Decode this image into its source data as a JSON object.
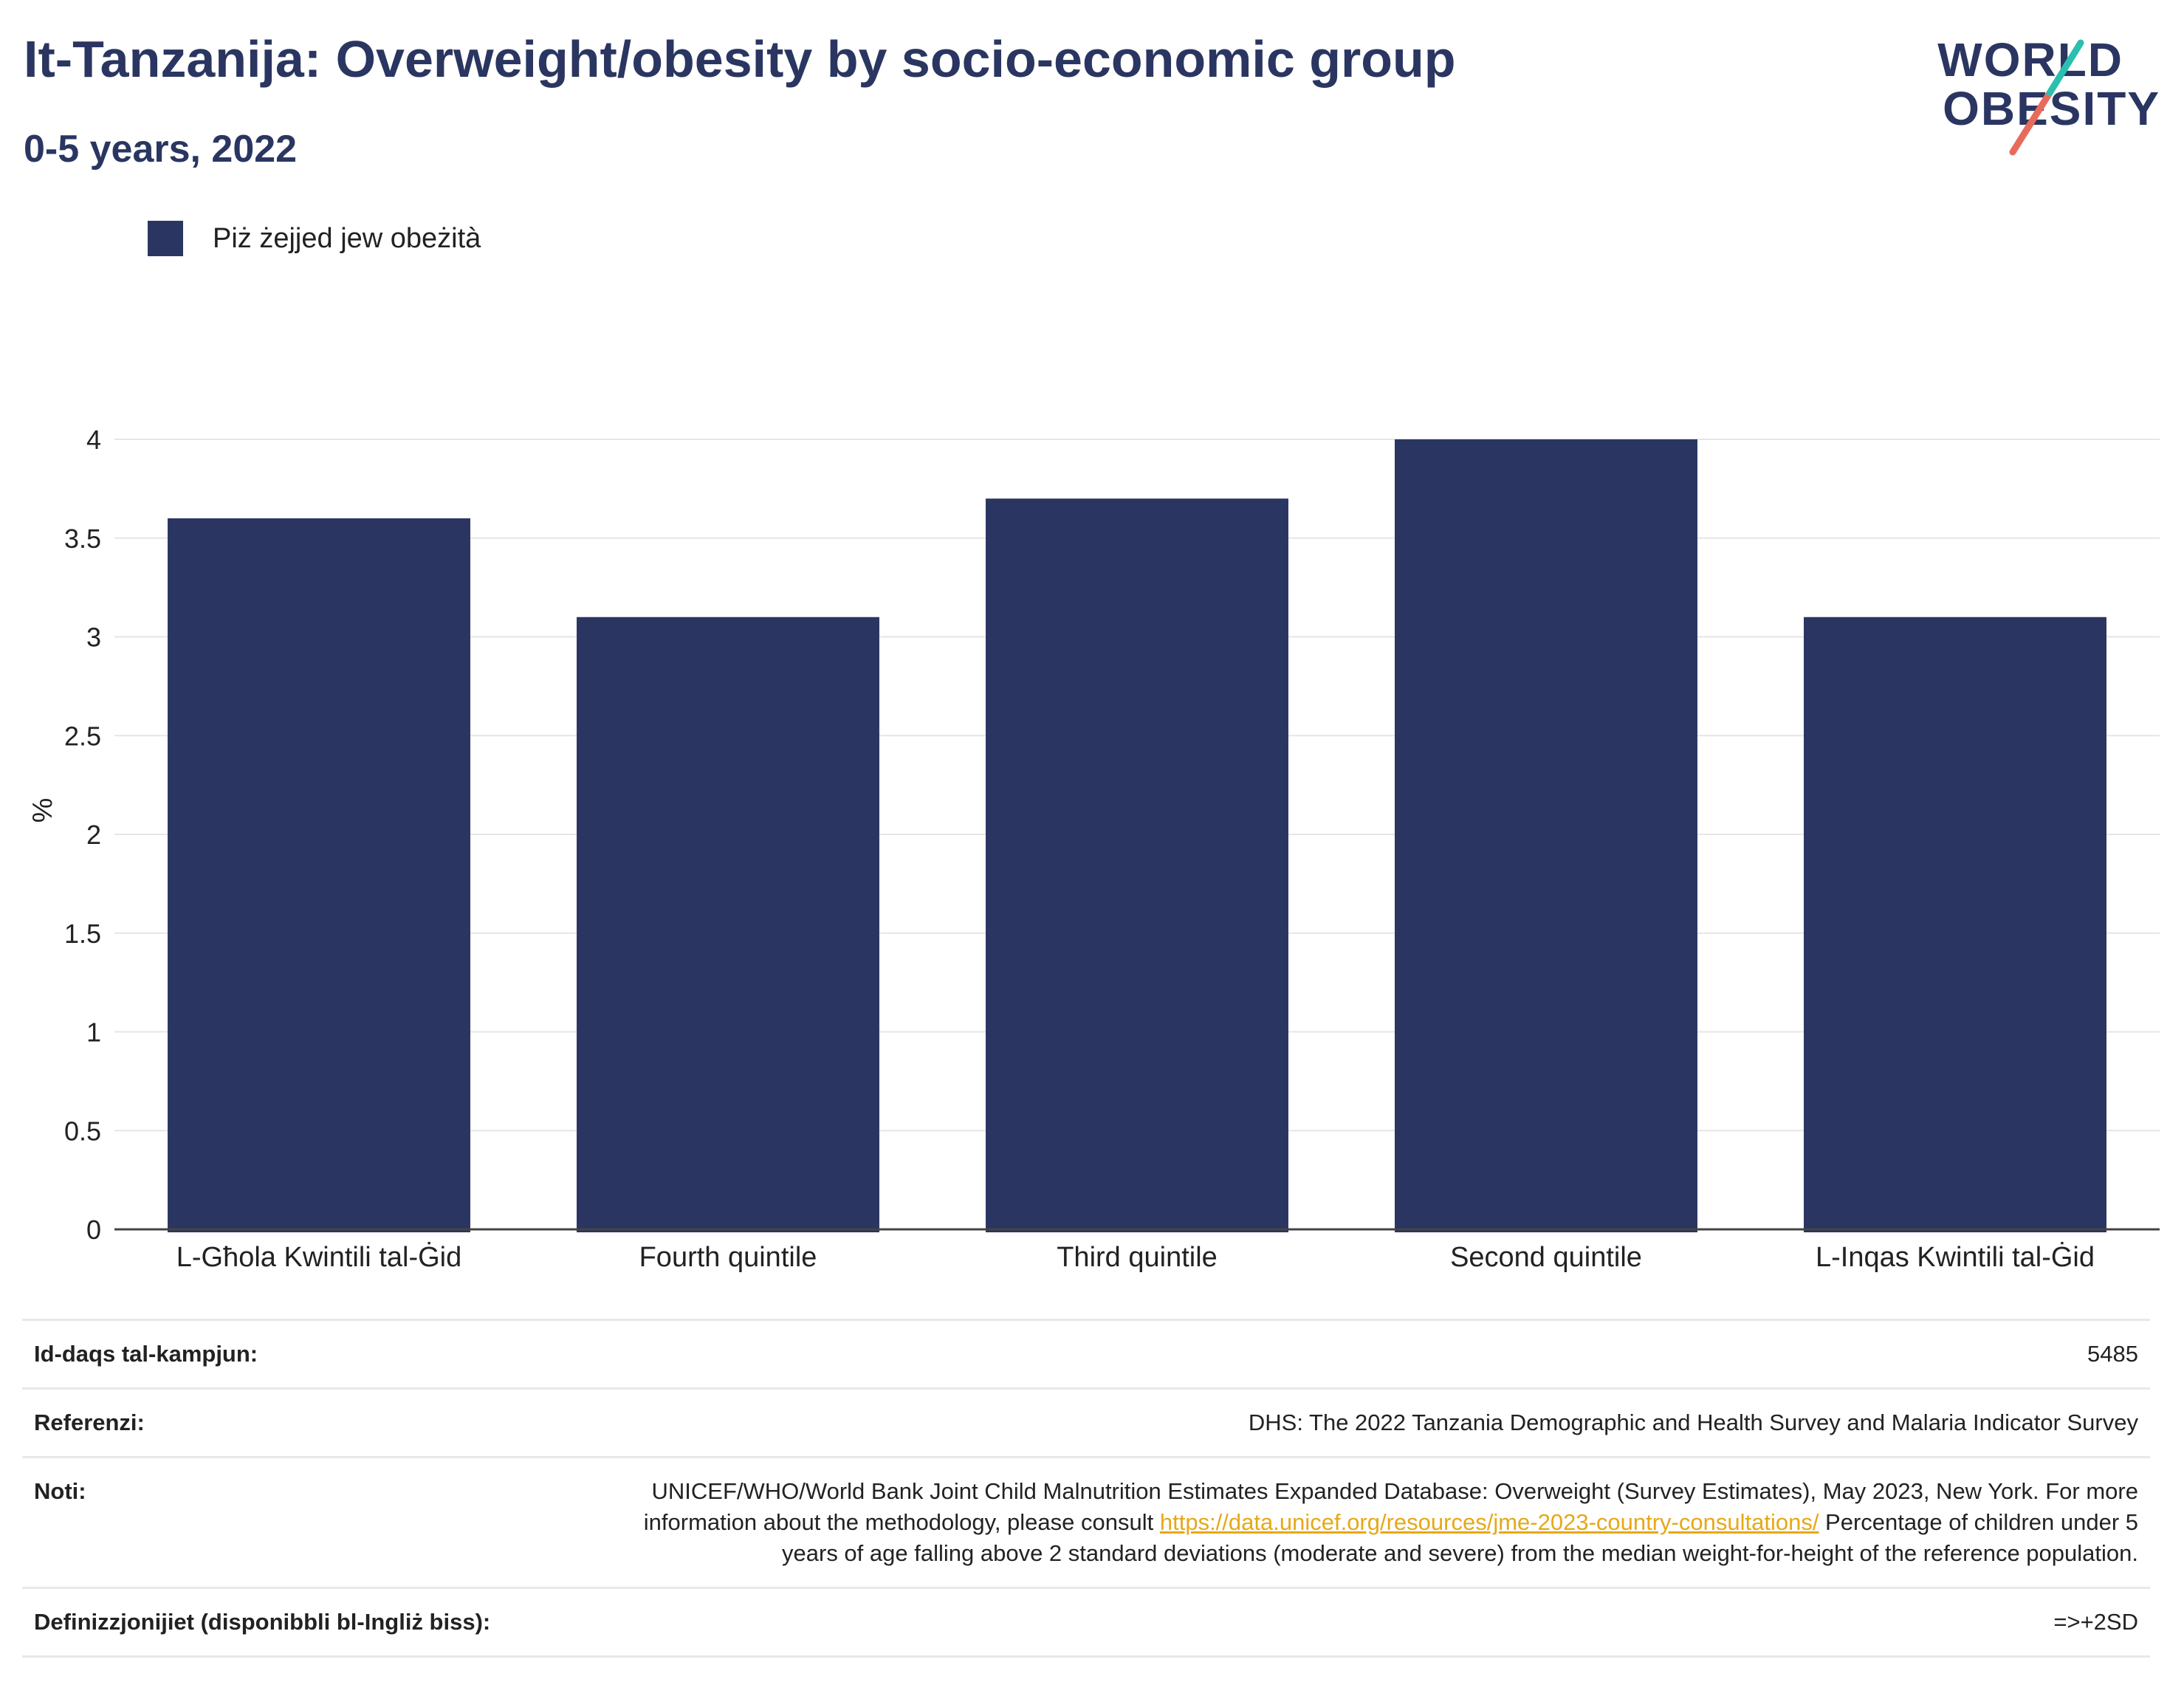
{
  "header": {
    "title": "It-Tanzanija: Overweight/obesity by socio-economic group",
    "subtitle": "0-5 years, 2022"
  },
  "logo": {
    "line1": "WORLD",
    "line2": "OBESITY"
  },
  "colors": {
    "bar": "#2a3661",
    "title": "#2a3661",
    "link": "#e6a817",
    "logo_teal": "#2bbfb0",
    "logo_coral": "#e86a5b"
  },
  "legend": {
    "label": "Piż żejjed jew obeżità"
  },
  "chart_data": {
    "type": "bar",
    "categories": [
      "L-Għola Kwintili tal-Ġid",
      "Fourth quintile",
      "Third quintile",
      "Second quintile",
      "L-Inqas Kwintili tal-Ġid"
    ],
    "series": [
      {
        "name": "Piż żejjed jew obeżità",
        "values": [
          3.6,
          3.1,
          3.7,
          4.0,
          3.1
        ]
      }
    ],
    "ylabel": "%",
    "ylim": [
      0,
      4
    ],
    "yticks": [
      0,
      0.5,
      1,
      1.5,
      2,
      2.5,
      3,
      3.5,
      4
    ],
    "ytick_labels": [
      "0",
      "0.5",
      "1",
      "1.5",
      "2",
      "2.5",
      "3",
      "3.5",
      "4"
    ],
    "grid": true,
    "legend_position": "top-left"
  },
  "info": {
    "sample_label": "Id-daqs tal-kampjun:",
    "sample_value": "5485",
    "refs_label": "Referenzi:",
    "refs_value": "DHS: The 2022 Tanzania Demographic and Health Survey and Malaria Indicator Survey",
    "notes_label": "Noti:",
    "notes_text1": "UNICEF/WHO/World Bank Joint Child Malnutrition Estimates Expanded Database: Overweight (Survey Estimates), May 2023, New York. For more information about the methodology, please consult ",
    "notes_link": "https://data.unicef.org/resources/jme-2023-country-consultations/",
    "notes_text2": " Percentage of children under 5 years of age falling above 2 standard deviations (moderate and severe) from the median weight-for-height of the reference population.",
    "defs_label": "Definizzjonijiet (disponibbli bl-Ingliż biss):",
    "defs_value": "=>+2SD"
  }
}
